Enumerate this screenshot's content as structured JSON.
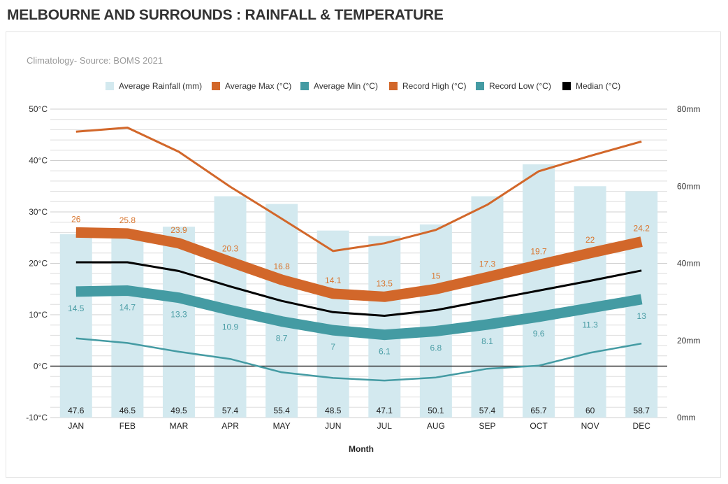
{
  "page": {
    "title": "MELBOURNE AND SURROUNDS : RAINFALL & TEMPERATURE"
  },
  "chart_data": {
    "type": "bar",
    "subtitle": "Climatology- Source: BOMS 2021",
    "xlabel": "Month",
    "categories": [
      "JAN",
      "FEB",
      "MAR",
      "APR",
      "MAY",
      "JUN",
      "JUL",
      "AUG",
      "SEP",
      "OCT",
      "NOV",
      "DEC"
    ],
    "left_axis": {
      "ticks": [
        -10,
        0,
        10,
        20,
        30,
        40,
        50
      ],
      "tick_labels": [
        "-10°C",
        "0°C",
        "10°C",
        "20°C",
        "30°C",
        "40°C",
        "50°C"
      ],
      "range": [
        -10,
        50
      ]
    },
    "right_axis": {
      "ticks": [
        0,
        20,
        40,
        60,
        80
      ],
      "tick_labels": [
        "0mm",
        "20mm",
        "40mm",
        "60mm",
        "80mm"
      ],
      "range": [
        0,
        80
      ]
    },
    "grid": true,
    "legend_position": "top-center",
    "series": [
      {
        "name": "Average Rainfall (mm)",
        "kind": "bar",
        "axis": "right",
        "color": "#d3e9ef",
        "values": [
          47.6,
          46.5,
          49.5,
          57.4,
          55.4,
          48.5,
          47.1,
          50.1,
          57.4,
          65.7,
          60,
          58.7
        ],
        "labels": [
          "47.6",
          "46.5",
          "49.5",
          "57.4",
          "55.4",
          "48.5",
          "47.1",
          "50.1",
          "57.4",
          "65.7",
          "60",
          "58.7"
        ]
      },
      {
        "name": "Average Max (°C)",
        "kind": "thick-line",
        "axis": "left",
        "color": "#d2672a",
        "label_color": "#d9762f",
        "values": [
          26,
          25.8,
          23.9,
          20.3,
          16.8,
          14.1,
          13.5,
          15,
          17.3,
          19.7,
          22,
          24.2
        ],
        "labels": [
          "26",
          "25.8",
          "23.9",
          "20.3",
          "16.8",
          "14.1",
          "13.5",
          "15",
          "17.3",
          "19.7",
          "22",
          "24.2"
        ]
      },
      {
        "name": "Average Min (°C)",
        "kind": "thick-line",
        "axis": "left",
        "color": "#449ba3",
        "label_color": "#4a9da5",
        "values": [
          14.5,
          14.7,
          13.3,
          10.9,
          8.7,
          7,
          6.1,
          6.8,
          8.1,
          9.6,
          11.3,
          13
        ],
        "labels": [
          "14.5",
          "14.7",
          "13.3",
          "10.9",
          "8.7",
          "7",
          "6.1",
          "6.8",
          "8.1",
          "9.6",
          "11.3",
          "13"
        ]
      },
      {
        "name": "Record High (°C)",
        "kind": "line",
        "axis": "left",
        "color": "#d2672a",
        "values": [
          45.6,
          46.4,
          41.7,
          34.9,
          28.7,
          22.4,
          23.9,
          26.5,
          31.4,
          37.9,
          40.9,
          43.7
        ]
      },
      {
        "name": "Record Low (°C)",
        "kind": "line",
        "axis": "left",
        "color": "#449ba3",
        "values": [
          5.4,
          4.5,
          2.8,
          1.4,
          -1.2,
          -2.3,
          -2.8,
          -2.2,
          -0.5,
          0.1,
          2.6,
          4.4
        ]
      },
      {
        "name": "Median  (°C)",
        "kind": "line",
        "axis": "left",
        "color": "#000000",
        "values": [
          20.2,
          20.2,
          18.5,
          15.5,
          12.7,
          10.5,
          9.8,
          10.9,
          12.8,
          14.7,
          16.6,
          18.6
        ]
      }
    ]
  }
}
